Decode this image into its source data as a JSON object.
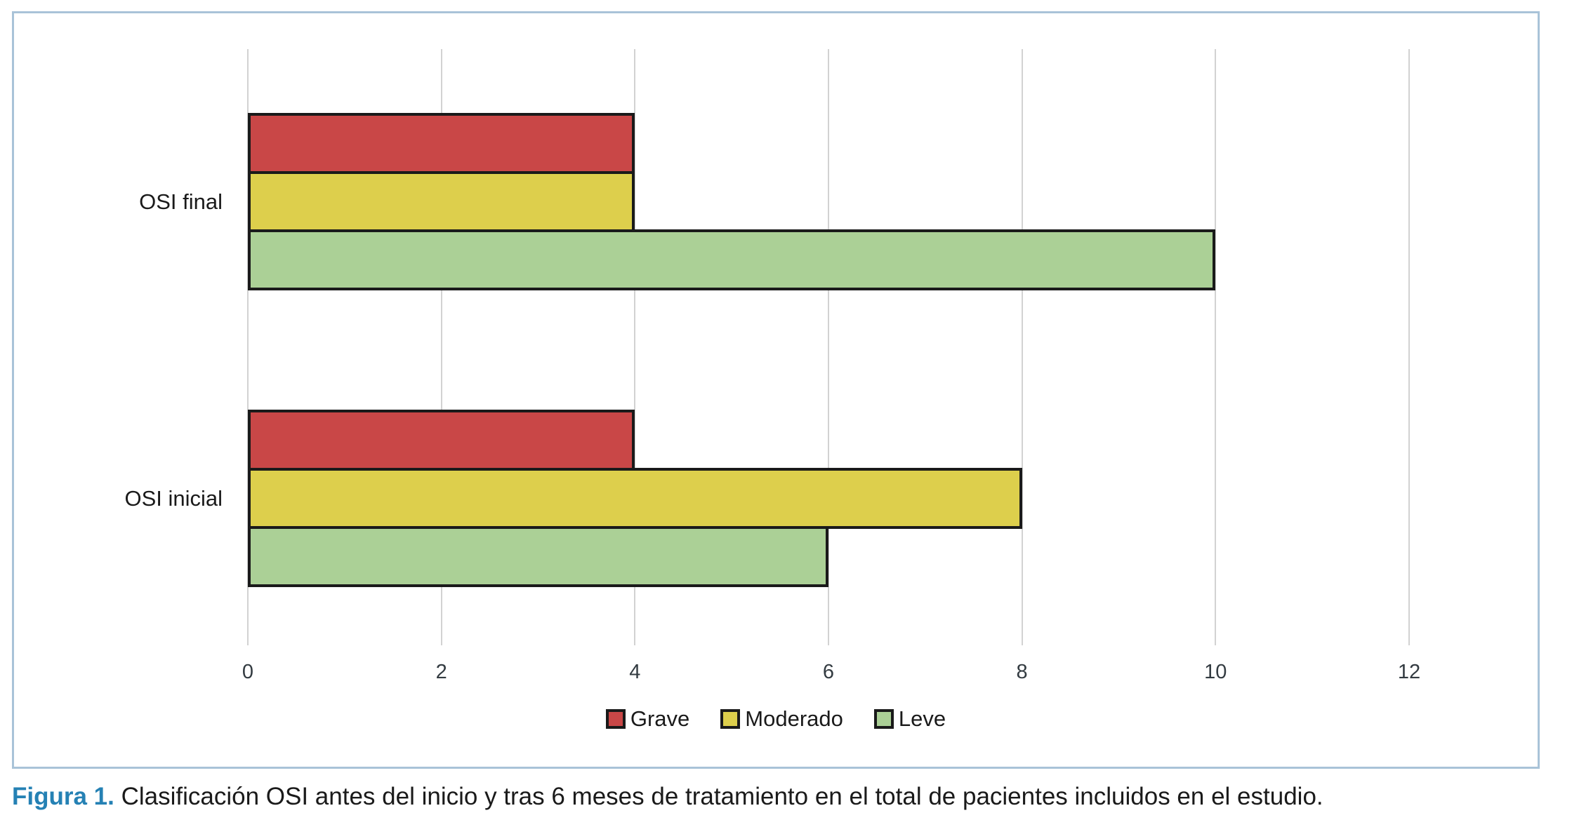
{
  "chart_data": {
    "type": "bar",
    "orientation": "horizontal",
    "title": "",
    "xlabel": "",
    "ylabel": "",
    "categories": [
      "OSI final",
      "OSI inicial"
    ],
    "series": [
      {
        "name": "Grave",
        "color": "#c94747",
        "values": [
          4,
          4
        ]
      },
      {
        "name": "Moderado",
        "color": "#ddcf4c",
        "values": [
          4,
          8
        ]
      },
      {
        "name": "Leve",
        "color": "#abd096",
        "values": [
          10,
          6
        ]
      }
    ],
    "x_ticks": [
      0,
      2,
      4,
      6,
      8,
      10,
      12
    ],
    "xlim": [
      0,
      12
    ],
    "grid": "vertical",
    "legend_position": "bottom",
    "legend_entries": [
      "Grave",
      "Moderado",
      "Leve"
    ]
  },
  "colors": {
    "bar_outline": "#1a1a1a",
    "gridline": "#d2d2d2",
    "figure_border": "#a9c3d8",
    "tick_text": "#333b41",
    "caption_label": "#2581b4"
  },
  "caption": {
    "label": "Figura 1.",
    "text": " Clasificación OSI antes del inicio y tras 6 meses de tratamiento en el total de pacientes incluidos en el estudio."
  }
}
